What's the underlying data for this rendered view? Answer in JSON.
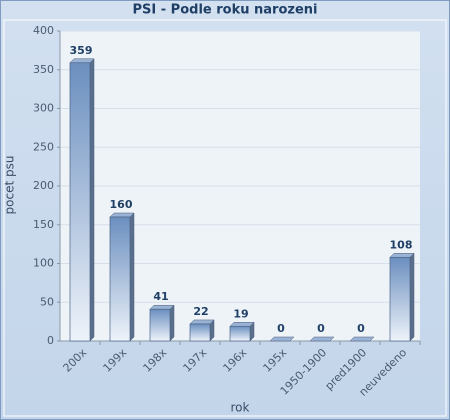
{
  "chart_data": {
    "type": "bar",
    "title": "PSI - Podle roku narozeni",
    "x_label": "rok",
    "y_label": "pocet psu",
    "categories": [
      "200x",
      "199x",
      "198x",
      "197x",
      "196x",
      "195x",
      "1950-1900",
      "pred1900",
      "neuvedeno"
    ],
    "values": [
      359,
      160,
      41,
      22,
      19,
      0,
      0,
      0,
      108
    ],
    "color": "#6b8fbf",
    "ylim": [
      0,
      400
    ],
    "yticks": [
      0,
      50,
      100,
      150,
      200,
      250,
      300,
      350,
      400
    ],
    "grid": true
  }
}
